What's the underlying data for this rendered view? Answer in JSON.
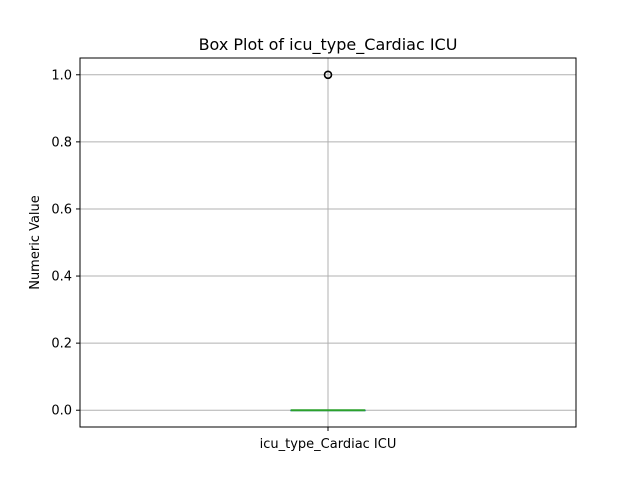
{
  "chart_data": {
    "type": "box",
    "title": "Box Plot of icu_type_Cardiac ICU",
    "xlabel": "",
    "ylabel": "Numeric Value",
    "categories": [
      "icu_type_Cardiac ICU"
    ],
    "ylim": [
      -0.05,
      1.05
    ],
    "yticks": [
      0.0,
      0.2,
      0.4,
      0.6,
      0.8,
      1.0
    ],
    "ytick_labels": [
      "0.0",
      "0.2",
      "0.4",
      "0.6",
      "0.8",
      "1.0"
    ],
    "grid": true,
    "boxes": [
      {
        "name": "icu_type_Cardiac ICU",
        "min": 0.0,
        "q1": 0.0,
        "median": 0.0,
        "q3": 0.0,
        "max": 0.0,
        "outliers": [
          1.0
        ]
      }
    ],
    "colors": {
      "median": "#2ca02c",
      "box": "#1f77b4",
      "grid": "#b0b0b0",
      "outlier": "#000000"
    }
  }
}
